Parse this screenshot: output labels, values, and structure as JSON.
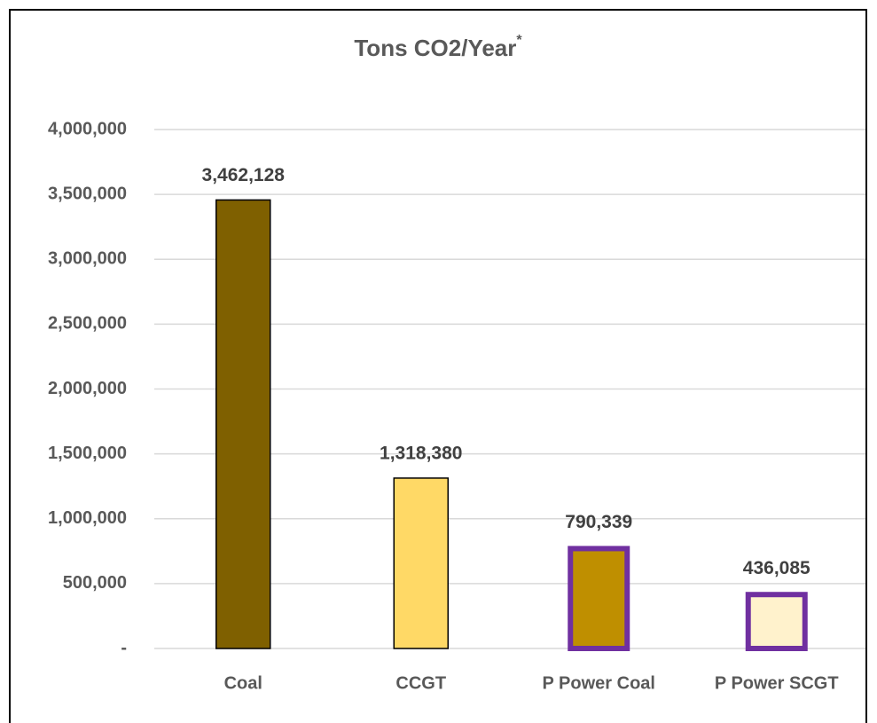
{
  "chart_data": {
    "type": "bar",
    "title": "Tons CO2/Year",
    "title_mark": "*",
    "categories": [
      "Coal",
      "CCGT",
      "P Power Coal",
      "P Power SCGT"
    ],
    "values": [
      3462128,
      1318380,
      790339,
      436085
    ],
    "value_labels": [
      "3,462,128",
      "1,318,380",
      "790,339",
      "436,085"
    ],
    "colors": [
      "#7f6000",
      "#ffd966",
      "#bf8f00",
      "#fff2cc"
    ],
    "edgecolors": [
      "#000000",
      "#000000",
      "#7030a0",
      "#7030a0"
    ],
    "ylim": [
      0,
      4000000
    ],
    "yticks": [
      {
        "value": 0,
        "label": "-"
      },
      {
        "value": 500000,
        "label": "500,000"
      },
      {
        "value": 1000000,
        "label": "1,000,000"
      },
      {
        "value": 1500000,
        "label": "1,500,000"
      },
      {
        "value": 2000000,
        "label": "2,000,000"
      },
      {
        "value": 2500000,
        "label": "2,500,000"
      },
      {
        "value": 3000000,
        "label": "3,000,000"
      },
      {
        "value": 3500000,
        "label": "3,500,000"
      },
      {
        "value": 4000000,
        "label": "4,000,000"
      }
    ],
    "grid": true
  }
}
